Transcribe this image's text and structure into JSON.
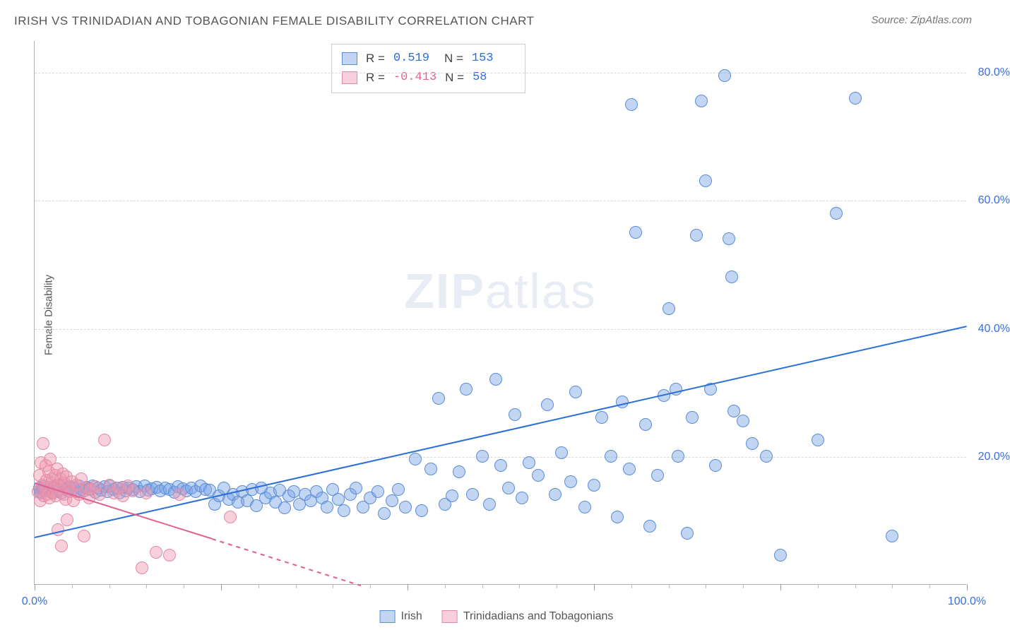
{
  "title": "IRISH VS TRINIDADIAN AND TOBAGONIAN FEMALE DISABILITY CORRELATION CHART",
  "source_label": "Source: ZipAtlas.com",
  "y_axis_label": "Female Disability",
  "watermark": {
    "prefix": "ZIP",
    "suffix": "atlas"
  },
  "chart": {
    "type": "scatter",
    "background_color": "#ffffff",
    "grid_color": "#d8d8d8",
    "axis_color": "#b0b0b0",
    "xlim": [
      0,
      100
    ],
    "ylim": [
      0,
      85
    ],
    "x_ticks_labeled": [
      {
        "value": 0,
        "label": "0.0%"
      },
      {
        "value": 100,
        "label": "100.0%"
      }
    ],
    "x_major_ticks": [
      0,
      20,
      40,
      60,
      80,
      100
    ],
    "x_minor_ticks": [
      4,
      8,
      12,
      16,
      24,
      28,
      32,
      36,
      44,
      48,
      52,
      56,
      64,
      68,
      72,
      76,
      84,
      88,
      92,
      96
    ],
    "y_ticks": [
      {
        "value": 20,
        "label": "20.0%"
      },
      {
        "value": 40,
        "label": "40.0%"
      },
      {
        "value": 60,
        "label": "60.0%"
      },
      {
        "value": 80,
        "label": "80.0%"
      }
    ],
    "label_color": "#3b6fd6",
    "label_fontsize": 16,
    "marker_radius": 9,
    "marker_border_width": 1
  },
  "series": [
    {
      "id": "irish",
      "name": "Irish",
      "fill_color": "rgba(120,165,230,0.45)",
      "stroke_color": "#5a8cd6",
      "trend": {
        "color": "#2a6fd6",
        "width": 2,
        "x1": 0,
        "y1": 7.5,
        "x2": 100,
        "y2": 40.5,
        "dash": "solid"
      },
      "stats": {
        "R": "0.519",
        "N": "153"
      },
      "points": [
        [
          0.5,
          15
        ],
        [
          0.6,
          14.5
        ],
        [
          0.7,
          14.2
        ],
        [
          0.9,
          14.8
        ],
        [
          1.0,
          15.2
        ],
        [
          1.1,
          14.6
        ],
        [
          1.3,
          14.9
        ],
        [
          1.5,
          15.1
        ],
        [
          1.7,
          14.7
        ],
        [
          1.9,
          14.4
        ],
        [
          2.0,
          15.0
        ],
        [
          2.2,
          15.4
        ],
        [
          2.5,
          14.6
        ],
        [
          2.7,
          15.3
        ],
        [
          2.9,
          14.2
        ],
        [
          3.1,
          15.5
        ],
        [
          3.3,
          14.8
        ],
        [
          3.5,
          14.9
        ],
        [
          3.8,
          15.2
        ],
        [
          4.0,
          14.7
        ],
        [
          4.2,
          15.0
        ],
        [
          4.5,
          14.5
        ],
        [
          4.8,
          15.3
        ],
        [
          5.0,
          14.8
        ],
        [
          5.3,
          14.6
        ],
        [
          5.6,
          15.1
        ],
        [
          5.9,
          14.9
        ],
        [
          6.2,
          15.4
        ],
        [
          6.5,
          14.3
        ],
        [
          6.8,
          15.0
        ],
        [
          7.1,
          14.7
        ],
        [
          7.5,
          15.2
        ],
        [
          7.8,
          14.5
        ],
        [
          8.1,
          15.3
        ],
        [
          8.5,
          14.8
        ],
        [
          8.8,
          15.0
        ],
        [
          9.1,
          14.2
        ],
        [
          9.5,
          15.1
        ],
        [
          9.8,
          14.6
        ],
        [
          10.1,
          15.0
        ],
        [
          10.5,
          14.8
        ],
        [
          10.9,
          15.2
        ],
        [
          11.3,
          14.5
        ],
        [
          11.8,
          15.3
        ],
        [
          12.2,
          14.7
        ],
        [
          12.6,
          14.9
        ],
        [
          13.1,
          15.1
        ],
        [
          13.5,
          14.6
        ],
        [
          14.0,
          15.0
        ],
        [
          14.5,
          14.8
        ],
        [
          15.0,
          14.4
        ],
        [
          15.4,
          15.2
        ],
        [
          15.9,
          14.9
        ],
        [
          16.3,
          14.6
        ],
        [
          16.8,
          15.0
        ],
        [
          17.3,
          14.5
        ],
        [
          17.8,
          15.3
        ],
        [
          18.3,
          14.8
        ],
        [
          18.8,
          14.7
        ],
        [
          19.3,
          12.5
        ],
        [
          19.8,
          13.8
        ],
        [
          20.3,
          15.0
        ],
        [
          20.8,
          13.2
        ],
        [
          21.3,
          14.0
        ],
        [
          21.8,
          12.8
        ],
        [
          22.3,
          14.5
        ],
        [
          22.8,
          13.0
        ],
        [
          23.3,
          14.8
        ],
        [
          23.8,
          12.2
        ],
        [
          24.3,
          15.0
        ],
        [
          24.8,
          13.5
        ],
        [
          25.3,
          14.2
        ],
        [
          25.8,
          12.8
        ],
        [
          26.3,
          14.7
        ],
        [
          26.8,
          11.9
        ],
        [
          27.3,
          13.8
        ],
        [
          27.8,
          14.5
        ],
        [
          28.4,
          12.5
        ],
        [
          29.0,
          14.0
        ],
        [
          29.6,
          13.0
        ],
        [
          30.2,
          14.5
        ],
        [
          30.8,
          13.5
        ],
        [
          31.4,
          12.0
        ],
        [
          32.0,
          14.8
        ],
        [
          32.6,
          13.2
        ],
        [
          33.2,
          11.5
        ],
        [
          33.9,
          14.0
        ],
        [
          34.5,
          15.0
        ],
        [
          35.2,
          12.0
        ],
        [
          36.0,
          13.5
        ],
        [
          36.8,
          14.5
        ],
        [
          37.5,
          11.0
        ],
        [
          38.3,
          13.0
        ],
        [
          39.0,
          14.8
        ],
        [
          39.8,
          12.0
        ],
        [
          40.8,
          19.5
        ],
        [
          41.5,
          11.5
        ],
        [
          42.5,
          18.0
        ],
        [
          43.3,
          29.0
        ],
        [
          44.0,
          12.5
        ],
        [
          44.8,
          13.8
        ],
        [
          45.5,
          17.5
        ],
        [
          46.3,
          30.5
        ],
        [
          47.0,
          14.0
        ],
        [
          48.0,
          20.0
        ],
        [
          48.8,
          12.5
        ],
        [
          49.5,
          32.0
        ],
        [
          50.0,
          18.5
        ],
        [
          50.8,
          15.0
        ],
        [
          51.5,
          26.5
        ],
        [
          52.3,
          13.5
        ],
        [
          53.0,
          19.0
        ],
        [
          54.0,
          17.0
        ],
        [
          55.0,
          28.0
        ],
        [
          55.8,
          14.0
        ],
        [
          56.5,
          20.5
        ],
        [
          57.5,
          16.0
        ],
        [
          58.0,
          30.0
        ],
        [
          59.0,
          12.0
        ],
        [
          60.0,
          15.5
        ],
        [
          60.8,
          26.0
        ],
        [
          61.8,
          20.0
        ],
        [
          62.5,
          10.5
        ],
        [
          63.0,
          28.5
        ],
        [
          63.8,
          18.0
        ],
        [
          64.0,
          75.0
        ],
        [
          64.5,
          55.0
        ],
        [
          65.5,
          25.0
        ],
        [
          66.0,
          9.0
        ],
        [
          66.8,
          17.0
        ],
        [
          67.5,
          29.5
        ],
        [
          68.0,
          43.0
        ],
        [
          68.8,
          30.5
        ],
        [
          69.0,
          20.0
        ],
        [
          70.0,
          8.0
        ],
        [
          70.5,
          26.0
        ],
        [
          71.0,
          54.5
        ],
        [
          71.5,
          75.5
        ],
        [
          72.0,
          63.0
        ],
        [
          72.5,
          30.5
        ],
        [
          73.0,
          18.5
        ],
        [
          74.0,
          79.5
        ],
        [
          74.5,
          54.0
        ],
        [
          74.8,
          48.0
        ],
        [
          75.0,
          27.0
        ],
        [
          76.0,
          25.5
        ],
        [
          77.0,
          22.0
        ],
        [
          78.5,
          20.0
        ],
        [
          80.0,
          4.5
        ],
        [
          84.0,
          22.5
        ],
        [
          86.0,
          58.0
        ],
        [
          88.0,
          76.0
        ],
        [
          92.0,
          7.5
        ]
      ]
    },
    {
      "id": "tt",
      "name": "Trinidadians and Tobagonians",
      "fill_color": "rgba(240,150,175,0.45)",
      "stroke_color": "#e389a5",
      "trend": {
        "color": "#e26091",
        "width": 2,
        "x1": 0,
        "y1": 16.0,
        "x2": 35,
        "y2": 0,
        "dash": "solid-then-dash",
        "dash_start_x": 19
      },
      "stats": {
        "R": "-0.413",
        "N": "58"
      },
      "points": [
        [
          0.4,
          14.5
        ],
        [
          0.5,
          17.0
        ],
        [
          0.6,
          13.0
        ],
        [
          0.7,
          19.0
        ],
        [
          0.8,
          15.5
        ],
        [
          0.9,
          22.0
        ],
        [
          1.0,
          13.8
        ],
        [
          1.1,
          15.0
        ],
        [
          1.2,
          18.5
        ],
        [
          1.3,
          16.2
        ],
        [
          1.4,
          14.0
        ],
        [
          1.5,
          17.5
        ],
        [
          1.6,
          13.5
        ],
        [
          1.7,
          19.5
        ],
        [
          1.8,
          15.8
        ],
        [
          1.9,
          16.5
        ],
        [
          2.0,
          14.2
        ],
        [
          2.1,
          15.0
        ],
        [
          2.2,
          17.0
        ],
        [
          2.3,
          13.8
        ],
        [
          2.4,
          18.0
        ],
        [
          2.5,
          8.5
        ],
        [
          2.6,
          15.5
        ],
        [
          2.7,
          14.8
        ],
        [
          2.8,
          16.5
        ],
        [
          2.9,
          6.0
        ],
        [
          3.0,
          17.2
        ],
        [
          3.1,
          14.0
        ],
        [
          3.2,
          15.8
        ],
        [
          3.3,
          13.2
        ],
        [
          3.4,
          16.8
        ],
        [
          3.5,
          10.0
        ],
        [
          3.6,
          15.0
        ],
        [
          3.8,
          14.5
        ],
        [
          4.0,
          16.0
        ],
        [
          4.2,
          13.0
        ],
        [
          4.5,
          15.5
        ],
        [
          4.8,
          14.0
        ],
        [
          5.0,
          16.5
        ],
        [
          5.3,
          7.5
        ],
        [
          5.5,
          15.0
        ],
        [
          5.8,
          13.5
        ],
        [
          6.0,
          14.8
        ],
        [
          6.5,
          15.2
        ],
        [
          7.0,
          14.0
        ],
        [
          7.5,
          22.5
        ],
        [
          8.0,
          15.5
        ],
        [
          8.5,
          14.2
        ],
        [
          9.0,
          15.0
        ],
        [
          9.5,
          13.8
        ],
        [
          10.0,
          15.3
        ],
        [
          10.5,
          14.6
        ],
        [
          11.5,
          2.5
        ],
        [
          12.0,
          14.2
        ],
        [
          13.0,
          5.0
        ],
        [
          14.5,
          4.5
        ],
        [
          15.5,
          14.0
        ],
        [
          21.0,
          10.5
        ]
      ]
    }
  ],
  "stats_box": {
    "rows": [
      {
        "swatch_fill": "rgba(120,165,230,0.45)",
        "swatch_border": "#5a8cd6",
        "r_label": "R =",
        "r_value": "0.519",
        "r_color": "#2a6fd6",
        "n_label": "N =",
        "n_value": "153",
        "n_color": "#2a6fd6"
      },
      {
        "swatch_fill": "rgba(240,150,175,0.45)",
        "swatch_border": "#e389a5",
        "r_label": "R =",
        "r_value": "-0.413",
        "r_color": "#e26091",
        "n_label": "N =",
        "n_value": "58",
        "n_color": "#2a6fd6"
      }
    ]
  },
  "legend": [
    {
      "swatch_fill": "rgba(120,165,230,0.45)",
      "swatch_border": "#5a8cd6",
      "label": "Irish"
    },
    {
      "swatch_fill": "rgba(240,150,175,0.45)",
      "swatch_border": "#e389a5",
      "label": "Trinidadians and Tobagonians"
    }
  ]
}
